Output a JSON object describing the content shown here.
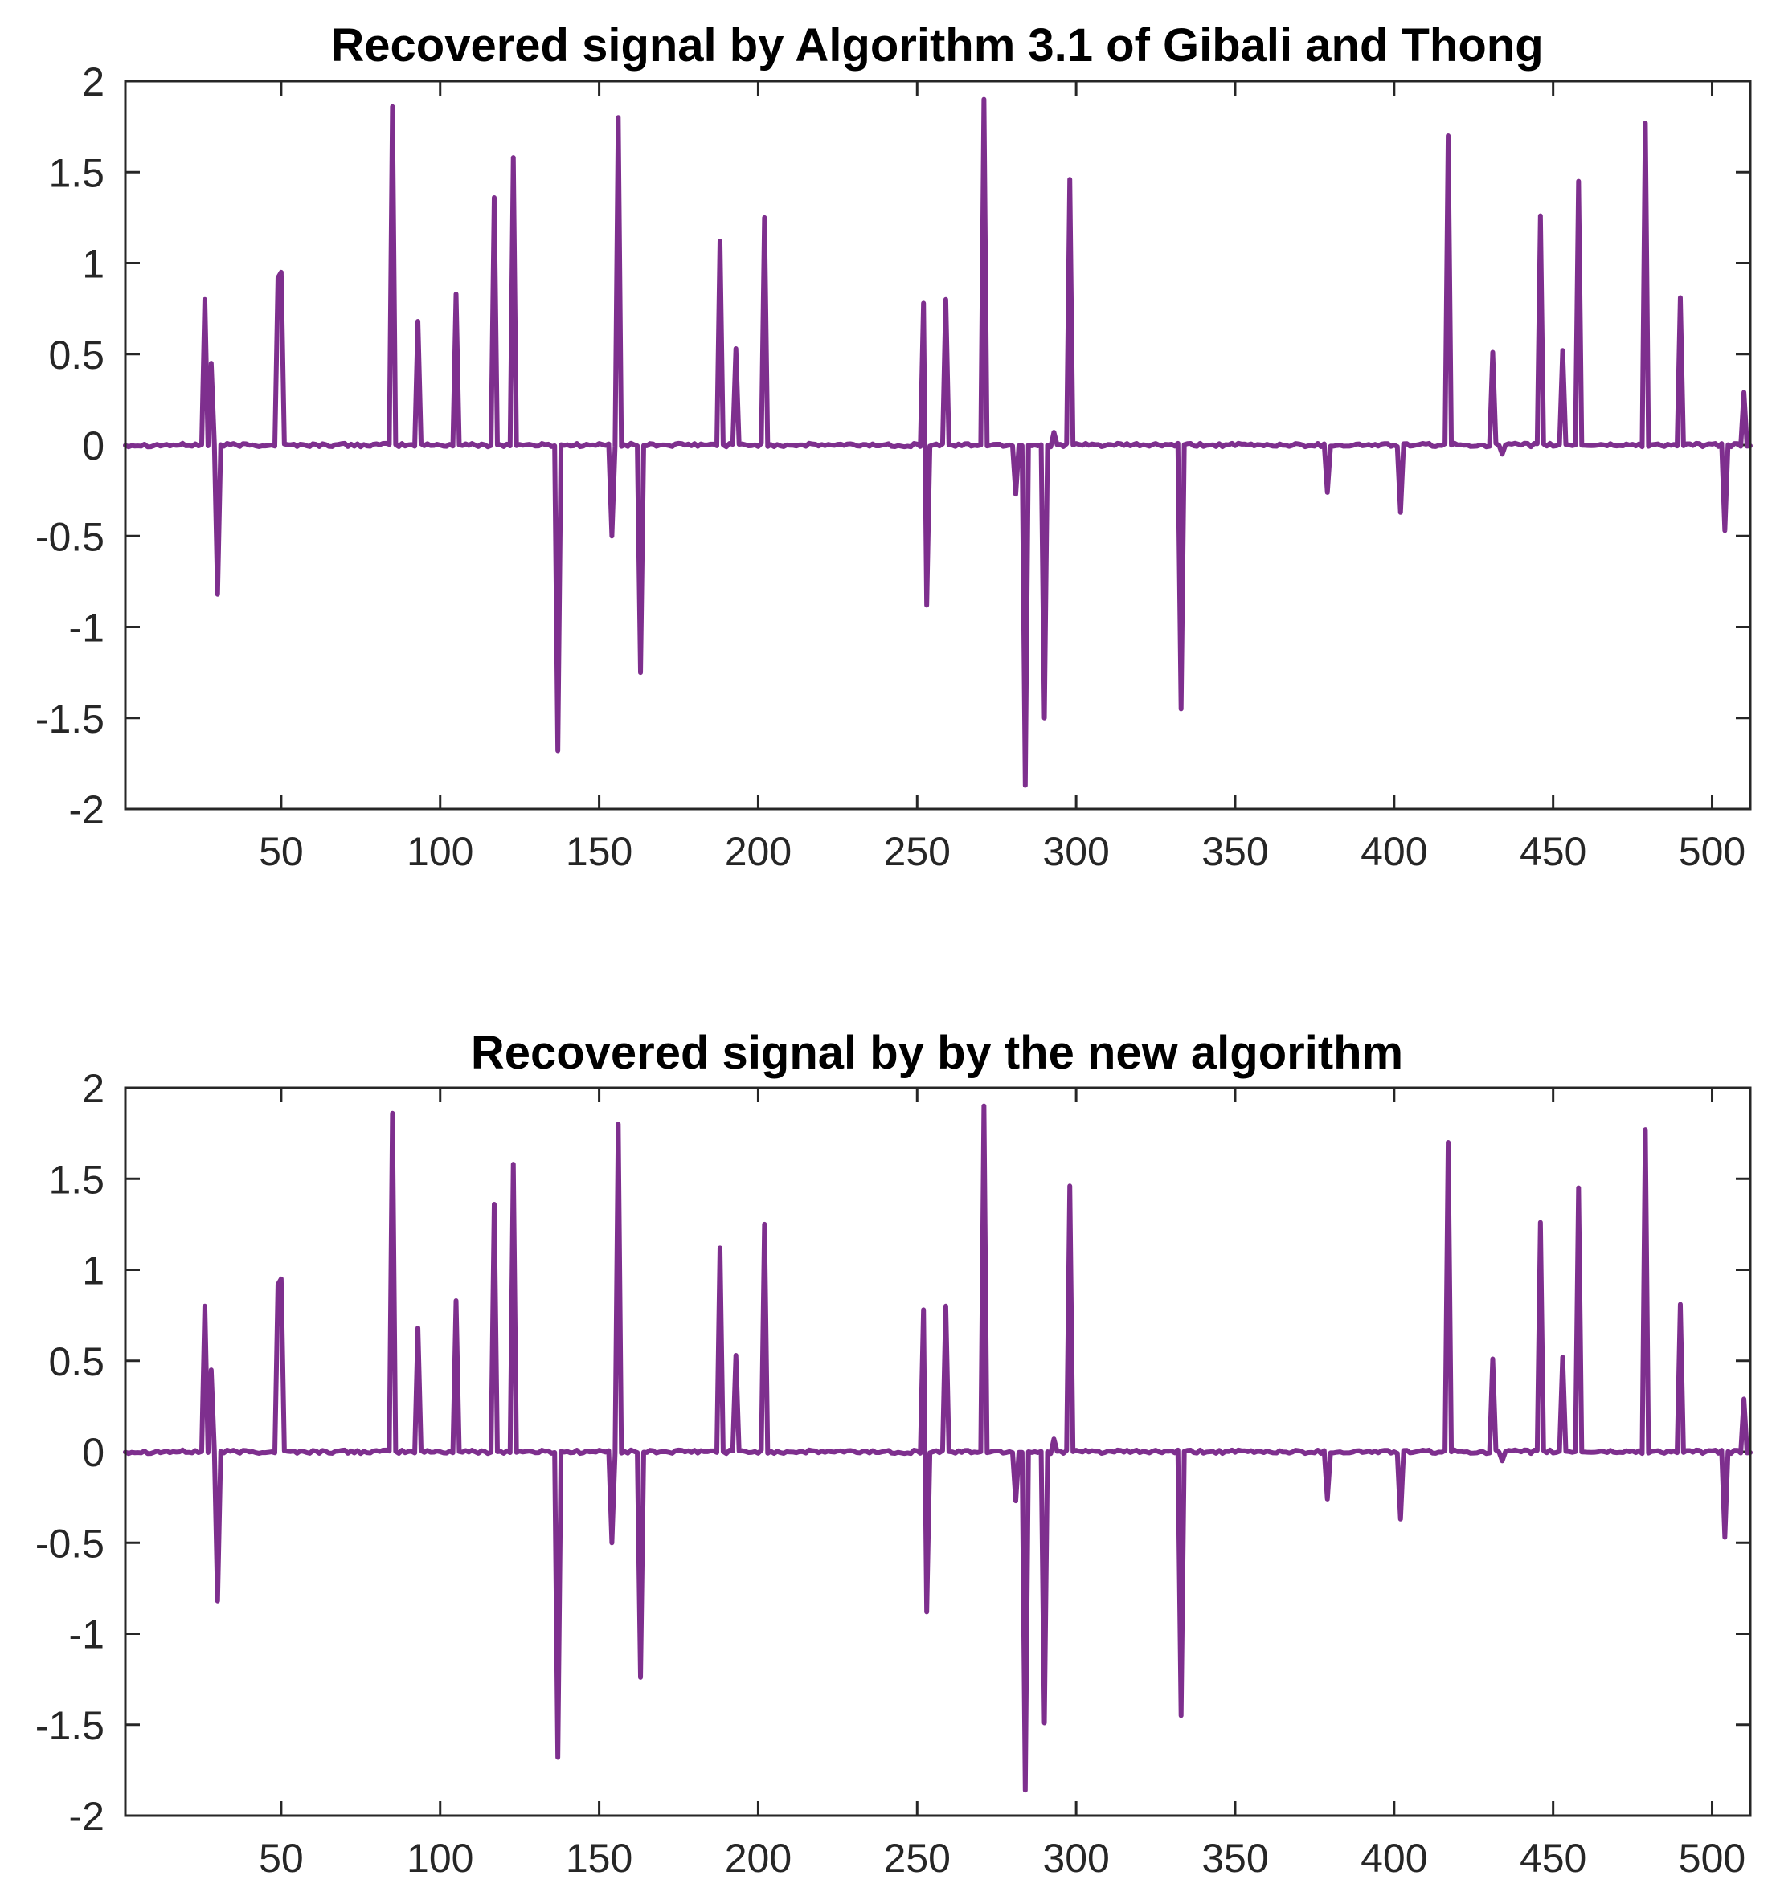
{
  "chart_data": [
    {
      "type": "line",
      "title": "Recovered signal by Algorithm 3.1 of Gibali and Thong",
      "xlabel": "",
      "ylabel": "",
      "xlim": [
        1,
        512
      ],
      "ylim": [
        -2,
        2
      ],
      "grid": false,
      "xticks": [
        50,
        100,
        150,
        200,
        250,
        300,
        350,
        400,
        450,
        500
      ],
      "xtick_labels": [
        "50",
        "100",
        "150",
        "200",
        "250",
        "300",
        "350",
        "400",
        "450",
        "500"
      ],
      "yticks": [
        2,
        1.5,
        1,
        0.5,
        0,
        -0.5,
        -1,
        -1.5,
        -2
      ],
      "ytick_labels": [
        "2",
        "1.5",
        "1",
        "0.5",
        "0",
        "-0.5",
        "-1",
        "-1.5",
        "-2"
      ],
      "line_color": "#7e2f8e",
      "baseline": 0,
      "components": [
        [
          26,
          0.8
        ],
        [
          28,
          0.45
        ],
        [
          30,
          -0.82
        ],
        [
          49,
          0.92
        ],
        [
          50,
          0.95
        ],
        [
          85,
          1.86
        ],
        [
          93,
          0.68
        ],
        [
          105,
          0.83
        ],
        [
          117,
          1.36
        ],
        [
          123,
          1.58
        ],
        [
          137,
          -1.68
        ],
        [
          154,
          -0.5
        ],
        [
          156,
          1.8
        ],
        [
          163,
          -1.25
        ],
        [
          188,
          1.12
        ],
        [
          193,
          0.53
        ],
        [
          202,
          1.25
        ],
        [
          252,
          0.78
        ],
        [
          253,
          -0.88
        ],
        [
          259,
          0.8
        ],
        [
          271,
          1.9
        ],
        [
          281,
          -0.27
        ],
        [
          284,
          -1.87
        ],
        [
          290,
          -1.5
        ],
        [
          293,
          0.07
        ],
        [
          298,
          1.46
        ],
        [
          333,
          -1.45
        ],
        [
          379,
          -0.26
        ],
        [
          402,
          -0.37
        ],
        [
          417,
          1.7
        ],
        [
          431,
          0.51
        ],
        [
          434,
          -0.05
        ],
        [
          446,
          1.26
        ],
        [
          453,
          0.52
        ],
        [
          458,
          1.45
        ],
        [
          479,
          1.77
        ],
        [
          490,
          0.81
        ],
        [
          504,
          -0.47
        ],
        [
          510,
          0.29
        ]
      ]
    },
    {
      "type": "line",
      "title": "Recovered signal by by the new algorithm",
      "xlabel": "",
      "ylabel": "",
      "xlim": [
        1,
        512
      ],
      "ylim": [
        -2,
        2
      ],
      "grid": false,
      "xticks": [
        50,
        100,
        150,
        200,
        250,
        300,
        350,
        400,
        450,
        500
      ],
      "xtick_labels": [
        "50",
        "100",
        "150",
        "200",
        "250",
        "300",
        "350",
        "400",
        "450",
        "500"
      ],
      "yticks": [
        2,
        1.5,
        1,
        0.5,
        0,
        -0.5,
        -1,
        -1.5,
        -2
      ],
      "ytick_labels": [
        "2",
        "1.5",
        "1",
        "0.5",
        "0",
        "-0.5",
        "-1",
        "-1.5",
        "-2"
      ],
      "line_color": "#7e2f8e",
      "baseline": 0,
      "components": [
        [
          26,
          0.8
        ],
        [
          28,
          0.45
        ],
        [
          30,
          -0.82
        ],
        [
          49,
          0.92
        ],
        [
          50,
          0.95
        ],
        [
          85,
          1.86
        ],
        [
          93,
          0.68
        ],
        [
          105,
          0.83
        ],
        [
          117,
          1.36
        ],
        [
          123,
          1.58
        ],
        [
          137,
          -1.68
        ],
        [
          154,
          -0.5
        ],
        [
          156,
          1.8
        ],
        [
          163,
          -1.24
        ],
        [
          188,
          1.12
        ],
        [
          193,
          0.53
        ],
        [
          202,
          1.25
        ],
        [
          252,
          0.78
        ],
        [
          253,
          -0.88
        ],
        [
          259,
          0.8
        ],
        [
          271,
          1.9
        ],
        [
          281,
          -0.27
        ],
        [
          284,
          -1.86
        ],
        [
          290,
          -1.49
        ],
        [
          293,
          0.07
        ],
        [
          298,
          1.46
        ],
        [
          333,
          -1.45
        ],
        [
          379,
          -0.26
        ],
        [
          402,
          -0.37
        ],
        [
          417,
          1.7
        ],
        [
          431,
          0.51
        ],
        [
          434,
          -0.05
        ],
        [
          446,
          1.26
        ],
        [
          453,
          0.52
        ],
        [
          458,
          1.45
        ],
        [
          479,
          1.77
        ],
        [
          490,
          0.81
        ],
        [
          504,
          -0.47
        ],
        [
          510,
          0.29
        ]
      ]
    }
  ]
}
